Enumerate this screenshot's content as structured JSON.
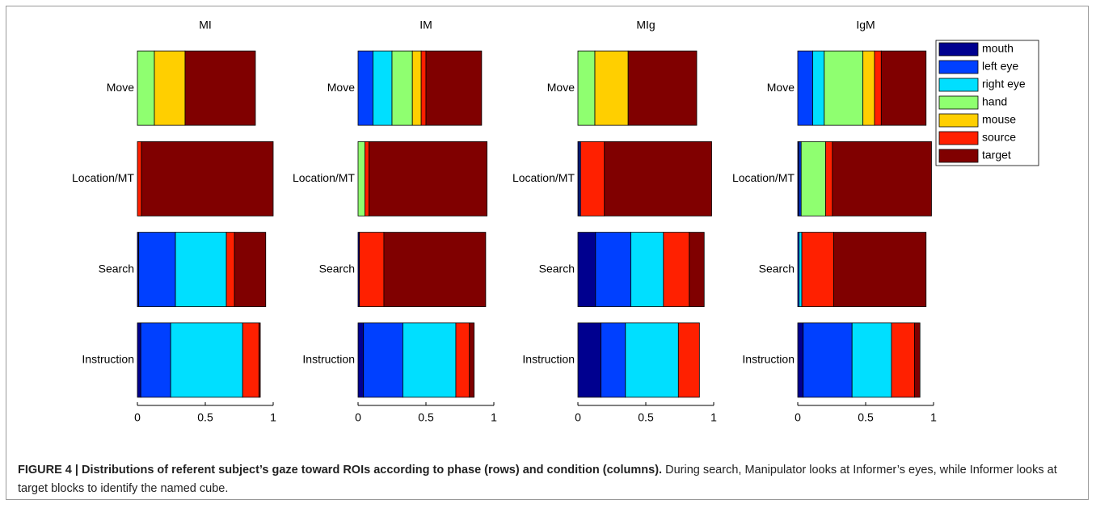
{
  "chart_data": [
    {
      "type": "bar",
      "orientation": "horizontal",
      "stacked": true,
      "title": "MI",
      "categories": [
        "Move",
        "Location/MT",
        "Search",
        "Instruction"
      ],
      "series": [
        {
          "name": "mouth",
          "color": "#00008f",
          "values": [
            0,
            0,
            0.01,
            0.025
          ]
        },
        {
          "name": "left eye",
          "color": "#0040ff",
          "values": [
            0,
            0,
            0.27,
            0.22
          ]
        },
        {
          "name": "right eye",
          "color": "#00dfff",
          "values": [
            0,
            0,
            0.375,
            0.53
          ]
        },
        {
          "name": "hand",
          "color": "#8fff70",
          "values": [
            0.125,
            0,
            0,
            0
          ]
        },
        {
          "name": "mouse",
          "color": "#ffcf00",
          "values": [
            0.226,
            0,
            0,
            0
          ]
        },
        {
          "name": "source",
          "color": "#ff2000",
          "values": [
            0,
            0.03,
            0.06,
            0.12
          ]
        },
        {
          "name": "target",
          "color": "#800000",
          "values": [
            0.518,
            0.97,
            0.23,
            0.01
          ]
        }
      ],
      "xlim": [
        0,
        1
      ],
      "xticks": [
        0,
        0.5,
        1
      ]
    },
    {
      "type": "bar",
      "orientation": "horizontal",
      "stacked": true,
      "title": "IM",
      "categories": [
        "Move",
        "Location/MT",
        "Search",
        "Instruction"
      ],
      "series": [
        {
          "name": "mouth",
          "color": "#00008f",
          "values": [
            0,
            0,
            0.01,
            0.04
          ]
        },
        {
          "name": "left eye",
          "color": "#0040ff",
          "values": [
            0.11,
            0,
            0,
            0.29
          ]
        },
        {
          "name": "right eye",
          "color": "#00dfff",
          "values": [
            0.14,
            0,
            0,
            0.39
          ]
        },
        {
          "name": "hand",
          "color": "#8fff70",
          "values": [
            0.15,
            0.05,
            0,
            0
          ]
        },
        {
          "name": "mouse",
          "color": "#ffcf00",
          "values": [
            0.065,
            0,
            0,
            0
          ]
        },
        {
          "name": "source",
          "color": "#ff2000",
          "values": [
            0.035,
            0.03,
            0.18,
            0.1
          ]
        },
        {
          "name": "target",
          "color": "#800000",
          "values": [
            0.41,
            0.87,
            0.75,
            0.035
          ]
        }
      ],
      "xlim": [
        0,
        1
      ],
      "xticks": [
        0,
        0.5,
        1
      ]
    },
    {
      "type": "bar",
      "orientation": "horizontal",
      "stacked": true,
      "title": "MIg",
      "categories": [
        "Move",
        "Location/MT",
        "Search",
        "Instruction"
      ],
      "series": [
        {
          "name": "mouth",
          "color": "#00008f",
          "values": [
            0,
            0.01,
            0.13,
            0.17
          ]
        },
        {
          "name": "left eye",
          "color": "#0040ff",
          "values": [
            0,
            0.01,
            0.26,
            0.18
          ]
        },
        {
          "name": "right eye",
          "color": "#00dfff",
          "values": [
            0,
            0,
            0.24,
            0.39
          ]
        },
        {
          "name": "hand",
          "color": "#8fff70",
          "values": [
            0.125,
            0,
            0,
            0
          ]
        },
        {
          "name": "mouse",
          "color": "#ffcf00",
          "values": [
            0.245,
            0,
            0,
            0
          ]
        },
        {
          "name": "source",
          "color": "#ff2000",
          "values": [
            0,
            0.175,
            0.19,
            0.155
          ]
        },
        {
          "name": "target",
          "color": "#800000",
          "values": [
            0.505,
            0.79,
            0.11,
            0
          ]
        }
      ],
      "xlim": [
        0,
        1
      ],
      "xticks": [
        0,
        0.5,
        1
      ]
    },
    {
      "type": "bar",
      "orientation": "horizontal",
      "stacked": true,
      "title": "IgM",
      "categories": [
        "Move",
        "Location/MT",
        "Search",
        "Instruction"
      ],
      "series": [
        {
          "name": "mouth",
          "color": "#00008f",
          "values": [
            0,
            0.01,
            0,
            0.04
          ]
        },
        {
          "name": "left eye",
          "color": "#0040ff",
          "values": [
            0.11,
            0.015,
            0.01,
            0.36
          ]
        },
        {
          "name": "right eye",
          "color": "#00dfff",
          "values": [
            0.085,
            0,
            0.02,
            0.29
          ]
        },
        {
          "name": "hand",
          "color": "#8fff70",
          "values": [
            0.285,
            0.18,
            0,
            0
          ]
        },
        {
          "name": "mouse",
          "color": "#ffcf00",
          "values": [
            0.085,
            0,
            0,
            0
          ]
        },
        {
          "name": "source",
          "color": "#ff2000",
          "values": [
            0.05,
            0.05,
            0.235,
            0.17
          ]
        },
        {
          "name": "target",
          "color": "#800000",
          "values": [
            0.33,
            0.73,
            0.68,
            0.04
          ]
        }
      ],
      "xlim": [
        0,
        1
      ],
      "xticks": [
        0,
        0.5,
        1
      ],
      "legend": "outside-right"
    }
  ],
  "caption": {
    "heading": "FIGURE 4 | Distributions of referent subject’s gaze toward ROIs according to phase (rows) and condition (columns).",
    "text": "During search, Manipulator looks at Informer’s eyes, while Informer looks at target blocks to identify the named cube."
  }
}
